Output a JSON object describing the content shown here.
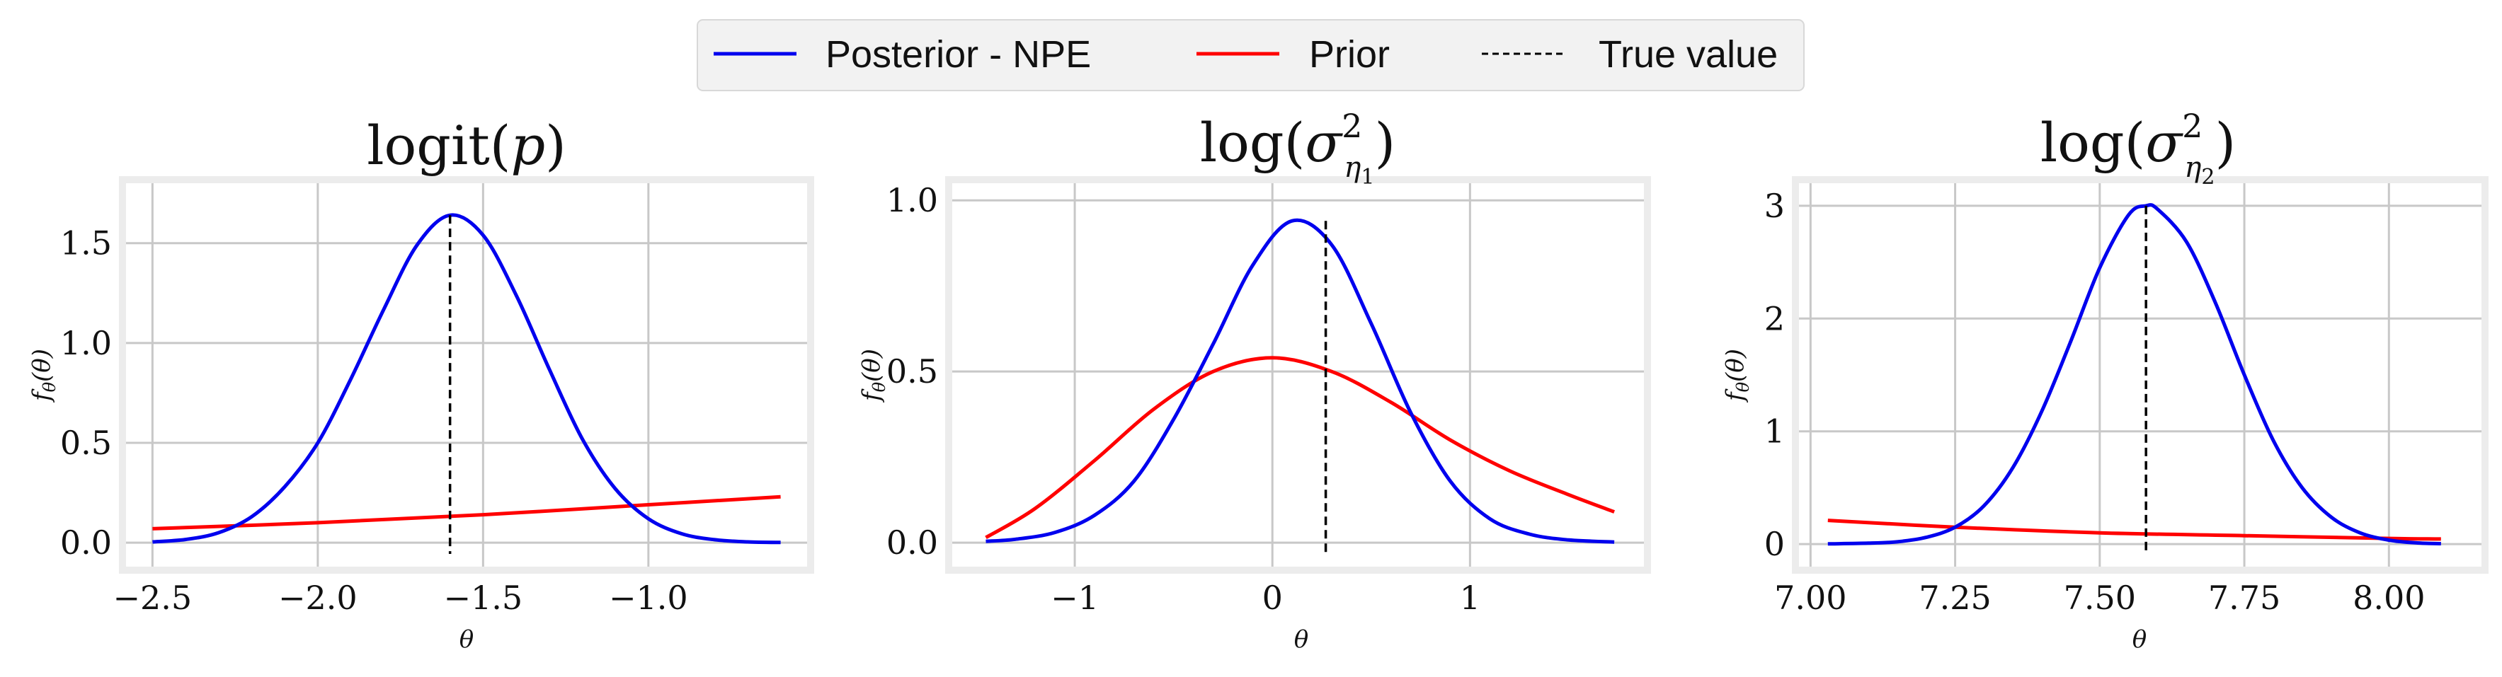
{
  "legend": {
    "items": [
      {
        "label": "Posterior - NPE",
        "color": "#0000ee",
        "style": "solid"
      },
      {
        "label": "Prior",
        "color": "#ff0000",
        "style": "solid"
      },
      {
        "label": "True value",
        "color": "#000000",
        "style": "dashed"
      }
    ]
  },
  "colors": {
    "posterior": "#0000ee",
    "prior": "#ff0000",
    "true_value": "#000000",
    "grid": "#c8c8c8",
    "frame": "#ececec"
  },
  "chart_data": [
    {
      "type": "line",
      "title": "logit(p)",
      "xlabel": "θ",
      "ylabel": "fθ(θ)",
      "xlim": [
        -2.58,
        -0.52
      ],
      "ylim": [
        -0.12,
        1.8
      ],
      "xticks": [
        -2.5,
        -2.0,
        -1.5,
        -1.0
      ],
      "xtick_labels": [
        "−2.5",
        "−2.0",
        "−1.5",
        "−1.0"
      ],
      "yticks": [
        0.0,
        0.5,
        1.0,
        1.5
      ],
      "ytick_labels": [
        "0.0",
        "0.5",
        "1.0",
        "1.5"
      ],
      "true_value": -1.6,
      "series": [
        {
          "name": "Posterior - NPE",
          "x": [
            -2.5,
            -2.4,
            -2.3,
            -2.2,
            -2.1,
            -2.0,
            -1.9,
            -1.8,
            -1.7,
            -1.6,
            -1.5,
            -1.4,
            -1.3,
            -1.2,
            -1.1,
            -1.0,
            -0.9,
            -0.8,
            -0.7,
            -0.6
          ],
          "y": [
            0.004,
            0.016,
            0.05,
            0.13,
            0.28,
            0.5,
            0.82,
            1.17,
            1.49,
            1.64,
            1.54,
            1.24,
            0.87,
            0.52,
            0.27,
            0.12,
            0.045,
            0.015,
            0.004,
            0.001
          ]
        },
        {
          "name": "Prior",
          "x": [
            -2.5,
            -2.0,
            -1.5,
            -1.0,
            -0.6
          ],
          "y": [
            0.07,
            0.1,
            0.14,
            0.19,
            0.23
          ]
        }
      ]
    },
    {
      "type": "line",
      "title": "log(σ²η1)",
      "xlabel": "θ",
      "ylabel": "fθ(θ)",
      "xlim": [
        -1.62,
        1.88
      ],
      "ylim": [
        -0.07,
        1.05
      ],
      "xticks": [
        -1,
        0,
        1
      ],
      "xtick_labels": [
        "−1",
        "0",
        "1"
      ],
      "yticks": [
        0.0,
        0.5,
        1.0
      ],
      "ytick_labels": [
        "0.0",
        "0.5",
        "1.0"
      ],
      "true_value": 0.27,
      "series": [
        {
          "name": "Posterior - NPE",
          "x": [
            -1.45,
            -1.3,
            -1.1,
            -0.9,
            -0.7,
            -0.5,
            -0.3,
            -0.1,
            0.1,
            0.3,
            0.5,
            0.7,
            0.9,
            1.1,
            1.3,
            1.5,
            1.73
          ],
          "y": [
            0.004,
            0.01,
            0.03,
            0.08,
            0.18,
            0.36,
            0.58,
            0.81,
            0.94,
            0.87,
            0.64,
            0.38,
            0.18,
            0.07,
            0.025,
            0.008,
            0.002
          ]
        },
        {
          "name": "Prior",
          "x": [
            -1.45,
            -1.2,
            -0.9,
            -0.6,
            -0.3,
            0.0,
            0.3,
            0.6,
            0.9,
            1.2,
            1.5,
            1.73
          ],
          "y": [
            0.015,
            0.1,
            0.24,
            0.39,
            0.5,
            0.54,
            0.5,
            0.41,
            0.3,
            0.21,
            0.14,
            0.09
          ]
        }
      ]
    },
    {
      "type": "line",
      "title": "log(σ²η2)",
      "xlabel": "θ",
      "ylabel": "fθ(θ)",
      "xlim": [
        6.98,
        8.16
      ],
      "ylim": [
        -0.2,
        3.2
      ],
      "xticks": [
        7.0,
        7.25,
        7.5,
        7.75,
        8.0
      ],
      "xtick_labels": [
        "7.00",
        "7.25",
        "7.50",
        "7.75",
        "8.00"
      ],
      "yticks": [
        0,
        1,
        2,
        3
      ],
      "ytick_labels": [
        "0",
        "1",
        "2",
        "3"
      ],
      "true_value": 7.58,
      "series": [
        {
          "name": "Posterior - NPE",
          "x": [
            7.03,
            7.1,
            7.15,
            7.2,
            7.25,
            7.3,
            7.35,
            7.4,
            7.45,
            7.5,
            7.55,
            7.58,
            7.6,
            7.65,
            7.7,
            7.75,
            7.8,
            7.85,
            7.9,
            7.95,
            8.0,
            8.05,
            8.09
          ],
          "y": [
            0.002,
            0.008,
            0.02,
            0.06,
            0.15,
            0.34,
            0.68,
            1.18,
            1.8,
            2.45,
            2.92,
            3.0,
            2.97,
            2.68,
            2.14,
            1.5,
            0.92,
            0.5,
            0.24,
            0.1,
            0.035,
            0.01,
            0.004
          ]
        },
        {
          "name": "Prior",
          "x": [
            7.03,
            7.25,
            7.5,
            7.75,
            8.0,
            8.09
          ],
          "y": [
            0.21,
            0.15,
            0.1,
            0.075,
            0.05,
            0.045
          ]
        }
      ]
    }
  ]
}
